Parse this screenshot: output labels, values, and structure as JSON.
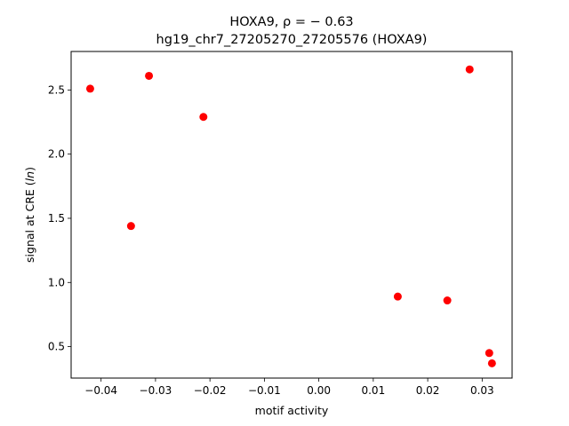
{
  "chart_data": {
    "type": "scatter",
    "title_line1": "HOXA9, ρ = − 0.63",
    "title_line2": "hg19_chr7_27205270_27205576 (HOXA9)",
    "xlabel": "motif activity",
    "ylabel": "signal at CRE (ln)",
    "xlim": [
      -0.0455,
      0.0355
    ],
    "ylim": [
      0.255,
      2.8
    ],
    "xticks": [
      {
        "value": -0.04,
        "label": "−0.04"
      },
      {
        "value": -0.03,
        "label": "−0.03"
      },
      {
        "value": -0.02,
        "label": "−0.02"
      },
      {
        "value": -0.01,
        "label": "−0.01"
      },
      {
        "value": 0.0,
        "label": "0.00"
      },
      {
        "value": 0.01,
        "label": "0.01"
      },
      {
        "value": 0.02,
        "label": "0.02"
      },
      {
        "value": 0.03,
        "label": "0.03"
      }
    ],
    "yticks": [
      {
        "value": 0.5,
        "label": "0.5"
      },
      {
        "value": 1.0,
        "label": "1.0"
      },
      {
        "value": 1.5,
        "label": "1.5"
      },
      {
        "value": 2.0,
        "label": "2.0"
      },
      {
        "value": 2.5,
        "label": "2.5"
      }
    ],
    "grid": false,
    "marker_color": "#ff0000",
    "points": [
      {
        "x": -0.042,
        "y": 2.51
      },
      {
        "x": -0.0345,
        "y": 1.44
      },
      {
        "x": -0.0312,
        "y": 2.61
      },
      {
        "x": -0.0212,
        "y": 2.29
      },
      {
        "x": 0.0145,
        "y": 0.89
      },
      {
        "x": 0.0236,
        "y": 0.86
      },
      {
        "x": 0.0277,
        "y": 2.66
      },
      {
        "x": 0.0313,
        "y": 0.45
      },
      {
        "x": 0.0318,
        "y": 0.37
      }
    ]
  }
}
